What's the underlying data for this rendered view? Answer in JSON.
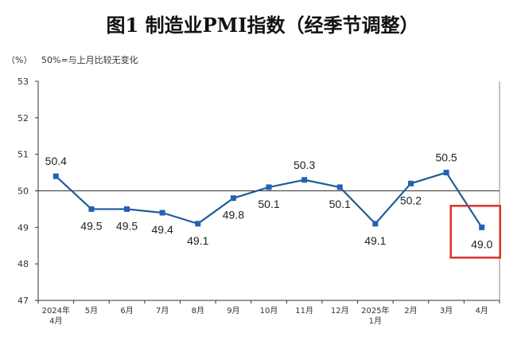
{
  "chart_data": {
    "type": "line",
    "title": "图1  制造业PMI指数（经季节调整）",
    "ylabel": "（%）",
    "reference_note": "50%=与上月比较无变化",
    "reference_value": 50,
    "ylim": [
      47,
      53
    ],
    "yticks": [
      "47",
      "48",
      "49",
      "50",
      "51",
      "52",
      "53"
    ],
    "categories": [
      [
        "2024年",
        "4月"
      ],
      [
        "5月"
      ],
      [
        "6月"
      ],
      [
        "7月"
      ],
      [
        "8月"
      ],
      [
        "9月"
      ],
      [
        "10月"
      ],
      [
        "11月"
      ],
      [
        "12月"
      ],
      [
        "2025年",
        "1月"
      ],
      [
        "2月"
      ],
      [
        "3月"
      ],
      [
        "4月"
      ]
    ],
    "values": [
      50.4,
      49.5,
      49.5,
      49.4,
      49.1,
      49.8,
      50.1,
      50.3,
      50.1,
      49.1,
      50.2,
      50.5,
      49.0
    ],
    "value_labels": [
      "50.4",
      "49.5",
      "49.5",
      "49.4",
      "49.1",
      "49.8",
      "50.1",
      "50.3",
      "50.1",
      "49.1",
      "50.2",
      "50.5",
      "49.0"
    ],
    "highlight_index": 12,
    "colors": {
      "line": "#1f5c99",
      "marker": "#2461b5",
      "highlight": "#d9322b",
      "axis": "#333333"
    }
  }
}
